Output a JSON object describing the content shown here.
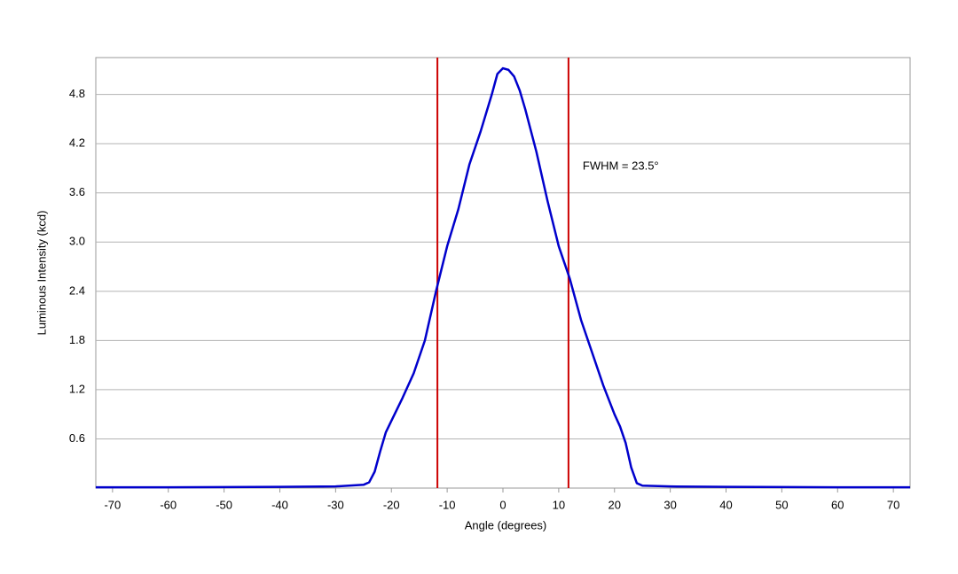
{
  "chart_data": {
    "type": "line",
    "x_label": "Angle (degrees)",
    "y_label": "Luminous Intensity (kcd)",
    "annotation": "FWHM = 23.5°",
    "x": [
      -73,
      -60,
      -40,
      -30,
      -25,
      -24,
      -23,
      -22,
      -21,
      -20,
      -18,
      -16,
      -14,
      -12,
      -10,
      -8,
      -6,
      -4,
      -2,
      -1,
      0,
      1,
      2,
      3,
      4,
      6,
      8,
      10,
      12,
      14,
      16,
      18,
      20,
      21,
      22,
      23,
      24,
      25,
      30,
      40,
      60,
      73
    ],
    "series": [
      {
        "color": "#0000cc",
        "values": [
          0.01,
          0.01,
          0.015,
          0.02,
          0.04,
          0.07,
          0.2,
          0.45,
          0.68,
          0.82,
          1.1,
          1.4,
          1.8,
          2.4,
          2.95,
          3.4,
          3.95,
          4.35,
          4.8,
          5.05,
          5.12,
          5.1,
          5.02,
          4.85,
          4.62,
          4.1,
          3.5,
          2.95,
          2.55,
          2.05,
          1.65,
          1.25,
          0.9,
          0.75,
          0.55,
          0.25,
          0.06,
          0.03,
          0.02,
          0.015,
          0.01,
          0.01
        ]
      }
    ],
    "vlines": [
      -11.75,
      11.75
    ],
    "vline_color": "#cc0000",
    "xlim": [
      -73,
      73
    ],
    "ylim": [
      0,
      5.25
    ],
    "xticks": [
      -70,
      -60,
      -50,
      -40,
      -30,
      -20,
      -10,
      0,
      10,
      20,
      30,
      40,
      50,
      60,
      70
    ],
    "yticks": [
      0.6,
      1.2,
      1.8,
      2.4,
      {
        "value": 3,
        "label": "3.0"
      },
      3.6,
      4.2,
      4.8
    ],
    "grid": true
  }
}
